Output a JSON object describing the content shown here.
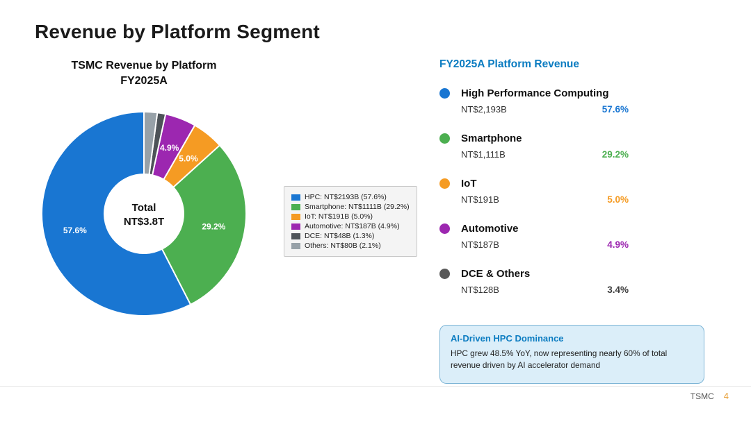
{
  "theme": {
    "accent_blue": "#0B7CC1",
    "callout_bg": "#DBEEF9",
    "callout_border": "#7DB5D6",
    "title_color": "#1A1A1A",
    "footer_page_color": "#E8A23C"
  },
  "slide": {
    "title": "Revenue by Platform Segment",
    "footer": {
      "brand": "TSMC",
      "page": "4"
    }
  },
  "chart_data": {
    "type": "pie",
    "subtype": "donut",
    "title_lines": [
      "TSMC Revenue by Platform",
      "FY2025A"
    ],
    "center_label_lines": [
      "Total",
      "NT$3.8T"
    ],
    "start_angle": 90,
    "direction": "counterclockwise",
    "legend_position": "right",
    "segments": [
      {
        "label": "HPC",
        "value_ntb": 2193,
        "pct": 57.6,
        "color": "#1976D2",
        "legend": "HPC: NT$2193B (57.6%)"
      },
      {
        "label": "Smartphone",
        "value_ntb": 1111,
        "pct": 29.2,
        "color": "#4CAF50",
        "legend": "Smartphone: NT$1111B (29.2%)"
      },
      {
        "label": "IoT",
        "value_ntb": 191,
        "pct": 5.0,
        "color": "#F59B23",
        "legend": "IoT: NT$191B (5.0%)"
      },
      {
        "label": "Automotive",
        "value_ntb": 187,
        "pct": 4.9,
        "color": "#9C27B0",
        "legend": "Automotive: NT$187B (4.9%)"
      },
      {
        "label": "DCE",
        "value_ntb": 48,
        "pct": 1.3,
        "color": "#4D5358",
        "legend": "DCE: NT$48B (1.3%)"
      },
      {
        "label": "Others",
        "value_ntb": 80,
        "pct": 2.1,
        "color": "#97A1A8",
        "legend": "Others: NT$80B (2.1%)"
      }
    ]
  },
  "panel": {
    "heading": "FY2025A Platform Revenue",
    "items": [
      {
        "name": "High Performance Computing",
        "value": "NT$2,193B",
        "pct": "57.6%",
        "color": "#1976D2",
        "pct_color": "#1976D2"
      },
      {
        "name": "Smartphone",
        "value": "NT$1,111B",
        "pct": "29.2%",
        "color": "#4CAF50",
        "pct_color": "#4CAF50"
      },
      {
        "name": "IoT",
        "value": "NT$191B",
        "pct": "5.0%",
        "color": "#F59B23",
        "pct_color": "#F59B23"
      },
      {
        "name": "Automotive",
        "value": "NT$187B",
        "pct": "4.9%",
        "color": "#9C27B0",
        "pct_color": "#9C27B0"
      },
      {
        "name": "DCE & Others",
        "value": "NT$128B",
        "pct": "3.4%",
        "color": "#595959",
        "pct_color": "#3D3D3D"
      }
    ],
    "callout": {
      "title": "AI-Driven HPC Dominance",
      "body": "HPC grew 48.5% YoY, now representing nearly 60% of total revenue driven by AI accelerator demand"
    }
  }
}
